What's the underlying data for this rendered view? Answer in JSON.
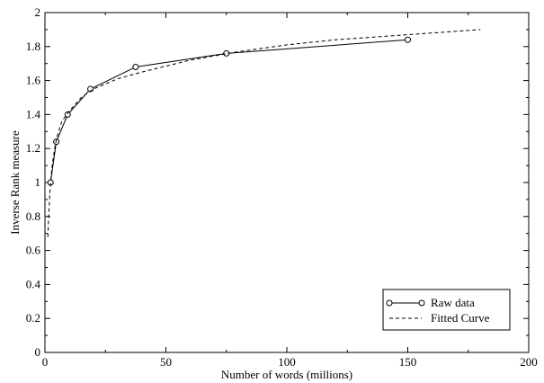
{
  "chart_data": {
    "type": "line",
    "title": "",
    "xlabel": "Number of words (millions)",
    "ylabel": "Inverse Rank measure",
    "xlim": [
      0,
      200
    ],
    "ylim": [
      0,
      2
    ],
    "xticks": [
      0,
      50,
      100,
      150,
      200
    ],
    "xtick_labels": [
      "0",
      "50",
      "100",
      "150",
      "200"
    ],
    "yticks": [
      0,
      0.2,
      0.4,
      0.6,
      0.8,
      1,
      1.2,
      1.4,
      1.6,
      1.8,
      2
    ],
    "ytick_labels": [
      "0",
      "0.2",
      "0.4",
      "0.6",
      "0.8",
      "1",
      "1.2",
      "1.4",
      "1.6",
      "1.8",
      "2"
    ],
    "grid": false,
    "legend_position": "bottom-right",
    "series": [
      {
        "name": "Raw data",
        "style": "solid",
        "marker": "circle",
        "color": "#000000",
        "x": [
          2.3,
          4.7,
          9.4,
          18.8,
          37.5,
          75,
          150
        ],
        "y": [
          1.0,
          1.24,
          1.4,
          1.55,
          1.68,
          1.76,
          1.84
        ]
      },
      {
        "name": "Fitted Curve",
        "style": "dashed",
        "marker": "none",
        "color": "#000000",
        "x": [
          1.2,
          1.5,
          2,
          2.5,
          3,
          4,
          5,
          7,
          10,
          15,
          20,
          30,
          40,
          60,
          80,
          100,
          120,
          150,
          180
        ],
        "y": [
          0.68,
          0.79,
          0.93,
          1.03,
          1.1,
          1.2,
          1.27,
          1.36,
          1.42,
          1.5,
          1.55,
          1.61,
          1.65,
          1.72,
          1.77,
          1.81,
          1.84,
          1.87,
          1.9
        ]
      }
    ]
  }
}
